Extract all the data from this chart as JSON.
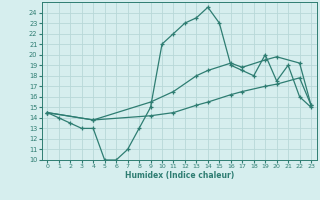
{
  "xlabel": "Humidex (Indice chaleur)",
  "xlim": [
    -0.5,
    23.5
  ],
  "ylim": [
    10,
    25
  ],
  "yticks": [
    10,
    11,
    12,
    13,
    14,
    15,
    16,
    17,
    18,
    19,
    20,
    21,
    22,
    23,
    24
  ],
  "xticks": [
    0,
    1,
    2,
    3,
    4,
    5,
    6,
    7,
    8,
    9,
    10,
    11,
    12,
    13,
    14,
    15,
    16,
    17,
    18,
    19,
    20,
    21,
    22,
    23
  ],
  "bg_color": "#d6eeee",
  "grid_color": "#b8d8d8",
  "line_color": "#2e7d72",
  "line1_x": [
    0,
    1,
    2,
    3,
    4,
    5,
    6,
    7,
    8,
    9,
    10,
    11,
    12,
    13,
    14,
    15,
    16,
    17,
    18,
    19,
    20,
    21,
    22,
    23
  ],
  "line1_y": [
    14.5,
    14.0,
    13.5,
    13.0,
    13.0,
    10.0,
    10.0,
    11.0,
    13.0,
    15.0,
    21.0,
    22.0,
    23.0,
    23.5,
    24.5,
    23.0,
    19.0,
    18.5,
    18.0,
    20.0,
    17.5,
    19.0,
    16.0,
    15.0
  ],
  "line2_x": [
    0,
    4,
    9,
    11,
    13,
    14,
    16,
    17,
    19,
    20,
    22,
    23
  ],
  "line2_y": [
    14.5,
    13.8,
    15.5,
    16.5,
    18.0,
    18.5,
    19.2,
    18.8,
    19.5,
    19.8,
    19.2,
    15.2
  ],
  "line3_x": [
    0,
    4,
    9,
    11,
    13,
    14,
    16,
    17,
    19,
    20,
    22,
    23
  ],
  "line3_y": [
    14.5,
    13.8,
    14.2,
    14.5,
    15.2,
    15.5,
    16.2,
    16.5,
    17.0,
    17.2,
    17.8,
    15.2
  ]
}
